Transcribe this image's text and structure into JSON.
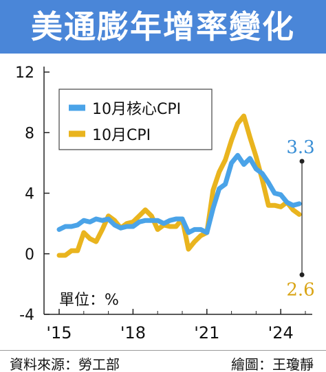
{
  "title": "美通膨年增率變化",
  "source": "資料來源：勞工部",
  "credit": "繪圖：王瓊靜",
  "colors": {
    "header": "#4a86d8",
    "core_cpi": "#4aa3e8",
    "cpi": "#e9b41e",
    "axis": "#222222",
    "label_blue": "#3a8fd6",
    "label_gold": "#d9a415"
  },
  "chart_data": {
    "type": "line",
    "title": "",
    "xlabel": "",
    "ylabel": "",
    "unit_label": "單位：%",
    "ylim": [
      -4,
      12
    ],
    "yticks": [
      "12",
      "8",
      "4",
      "0",
      "-4"
    ],
    "yticks_values": [
      12,
      8,
      4,
      0,
      -4
    ],
    "xlim": [
      2015,
      2025
    ],
    "xticks": [
      "'15",
      "'18",
      "'21",
      "'24"
    ],
    "xticks_values": [
      2015,
      2018,
      2021,
      2024
    ],
    "legend": "top-left",
    "grid": false,
    "series": [
      {
        "name": "10月核心CPI",
        "color": "#4aa3e8",
        "end_label": "3.3",
        "points": [
          [
            2015.0,
            1.6
          ],
          [
            2015.25,
            1.8
          ],
          [
            2015.5,
            1.8
          ],
          [
            2015.75,
            1.9
          ],
          [
            2016.0,
            2.2
          ],
          [
            2016.25,
            2.1
          ],
          [
            2016.5,
            2.3
          ],
          [
            2016.75,
            2.2
          ],
          [
            2017.0,
            2.3
          ],
          [
            2017.25,
            1.9
          ],
          [
            2017.5,
            1.7
          ],
          [
            2017.75,
            1.8
          ],
          [
            2018.0,
            1.8
          ],
          [
            2018.25,
            2.1
          ],
          [
            2018.5,
            2.2
          ],
          [
            2018.75,
            2.2
          ],
          [
            2019.0,
            2.2
          ],
          [
            2019.25,
            2.0
          ],
          [
            2019.5,
            2.2
          ],
          [
            2019.75,
            2.3
          ],
          [
            2020.0,
            2.3
          ],
          [
            2020.25,
            1.4
          ],
          [
            2020.5,
            1.6
          ],
          [
            2020.75,
            1.6
          ],
          [
            2021.0,
            1.4
          ],
          [
            2021.25,
            3.0
          ],
          [
            2021.5,
            4.3
          ],
          [
            2021.75,
            4.6
          ],
          [
            2022.0,
            6.0
          ],
          [
            2022.25,
            6.5
          ],
          [
            2022.5,
            5.9
          ],
          [
            2022.75,
            6.3
          ],
          [
            2023.0,
            5.6
          ],
          [
            2023.25,
            5.3
          ],
          [
            2023.5,
            4.7
          ],
          [
            2023.75,
            4.0
          ],
          [
            2024.0,
            3.9
          ],
          [
            2024.25,
            3.4
          ],
          [
            2024.5,
            3.2
          ],
          [
            2024.75,
            3.3
          ]
        ]
      },
      {
        "name": "10月CPI",
        "color": "#e9b41e",
        "end_label": "2.6",
        "points": [
          [
            2015.0,
            -0.1
          ],
          [
            2015.25,
            -0.1
          ],
          [
            2015.5,
            0.2
          ],
          [
            2015.75,
            0.2
          ],
          [
            2016.0,
            1.4
          ],
          [
            2016.25,
            1.0
          ],
          [
            2016.5,
            0.8
          ],
          [
            2016.75,
            1.6
          ],
          [
            2017.0,
            2.5
          ],
          [
            2017.25,
            2.2
          ],
          [
            2017.5,
            1.7
          ],
          [
            2017.75,
            2.0
          ],
          [
            2018.0,
            2.1
          ],
          [
            2018.25,
            2.5
          ],
          [
            2018.5,
            2.9
          ],
          [
            2018.75,
            2.5
          ],
          [
            2019.0,
            1.6
          ],
          [
            2019.25,
            1.9
          ],
          [
            2019.5,
            1.8
          ],
          [
            2019.75,
            1.8
          ],
          [
            2020.0,
            2.3
          ],
          [
            2020.25,
            0.3
          ],
          [
            2020.5,
            0.8
          ],
          [
            2020.75,
            1.2
          ],
          [
            2021.0,
            1.4
          ],
          [
            2021.25,
            4.2
          ],
          [
            2021.5,
            5.4
          ],
          [
            2021.75,
            6.2
          ],
          [
            2022.0,
            7.5
          ],
          [
            2022.25,
            8.6
          ],
          [
            2022.5,
            9.1
          ],
          [
            2022.75,
            7.7
          ],
          [
            2023.0,
            6.4
          ],
          [
            2023.25,
            4.9
          ],
          [
            2023.5,
            3.2
          ],
          [
            2023.75,
            3.2
          ],
          [
            2024.0,
            3.1
          ],
          [
            2024.25,
            3.4
          ],
          [
            2024.5,
            2.9
          ],
          [
            2024.75,
            2.6
          ]
        ]
      }
    ]
  }
}
